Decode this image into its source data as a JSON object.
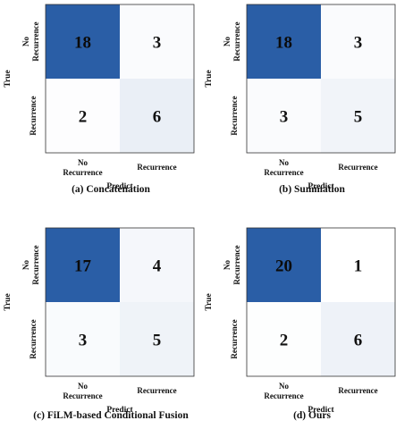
{
  "chart_data": [
    {
      "type": "heatmap",
      "caption": "(a) Concatenation",
      "rows": [
        "No Recurrence",
        "Recurrence"
      ],
      "columns": [
        "No Recurrence",
        "Recurrence"
      ],
      "values": [
        [
          18,
          3
        ],
        [
          2,
          6
        ]
      ],
      "xlabel": "Predict",
      "ylabel": "True",
      "cmap": {
        "low": "#ffffff",
        "high": "#2a5ea6"
      }
    },
    {
      "type": "heatmap",
      "caption": "(b) Summation",
      "rows": [
        "No Recurrence",
        "Recurrence"
      ],
      "columns": [
        "No Recurrence",
        "Recurrence"
      ],
      "values": [
        [
          18,
          3
        ],
        [
          3,
          5
        ]
      ],
      "xlabel": "Predict",
      "ylabel": "True",
      "cmap": {
        "low": "#ffffff",
        "high": "#2a5ea6"
      }
    },
    {
      "type": "heatmap",
      "caption": "(c) FiLM-based Conditional Fusion",
      "rows": [
        "No Recurrence",
        "Recurrence"
      ],
      "columns": [
        "No Recurrence",
        "Recurrence"
      ],
      "values": [
        [
          17,
          4
        ],
        [
          3,
          5
        ]
      ],
      "xlabel": "Predict",
      "ylabel": "True",
      "cmap": {
        "low": "#ffffff",
        "high": "#2a5ea6"
      }
    },
    {
      "type": "heatmap",
      "caption": "(d) Ours",
      "rows": [
        "No Recurrence",
        "Recurrence"
      ],
      "columns": [
        "No Recurrence",
        "Recurrence"
      ],
      "values": [
        [
          20,
          1
        ],
        [
          2,
          6
        ]
      ],
      "xlabel": "Predict",
      "ylabel": "True",
      "cmap": {
        "low": "#ffffff",
        "high": "#2a5ea6"
      }
    }
  ]
}
